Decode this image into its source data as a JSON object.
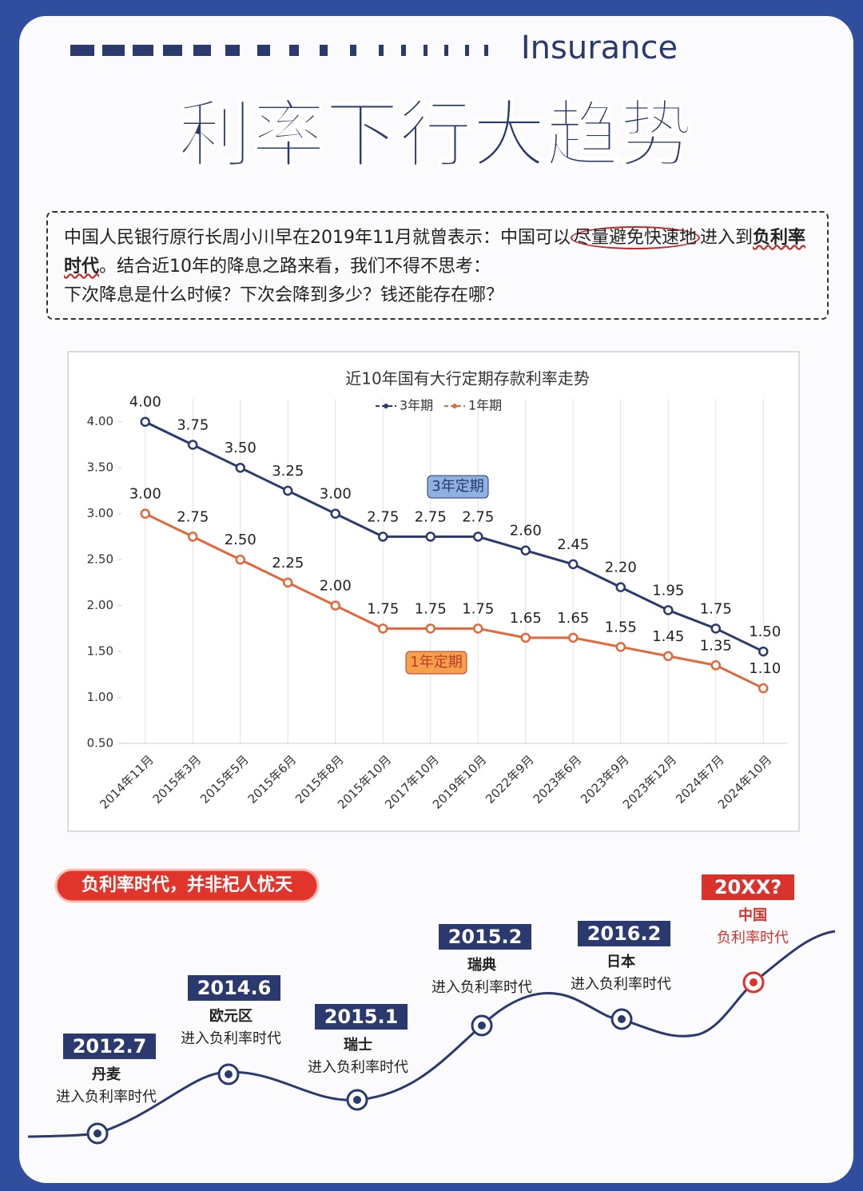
{
  "header": {
    "tag": "Insurance",
    "title": "利率下行大趋势"
  },
  "intro": {
    "segments": [
      "中国人民银行原行长周小川早在2019年11月就曾表示：中国可以",
      "尽量避免快速地",
      "进入到",
      "负利率时代",
      "。结合近10年的降息之路来看，我们不得不思考："
    ],
    "questions": "下次降息是什么时候？下次会降到多少？钱还能存在哪？"
  },
  "chart_data": {
    "type": "line",
    "title": "近10年国有大行定期存款利率走势",
    "categories": [
      "2014年11月",
      "2015年3月",
      "2015年5月",
      "2015年6月",
      "2015年8月",
      "2015年10月",
      "2017年10月",
      "2019年10月",
      "2022年9月",
      "2023年6月",
      "2023年9月",
      "2023年12月",
      "2024年7月",
      "2024年10月"
    ],
    "series": [
      {
        "name": "3年期",
        "color": "#2b3a6e",
        "values": [
          4.0,
          3.75,
          3.5,
          3.25,
          3.0,
          2.75,
          2.75,
          2.75,
          2.6,
          2.45,
          2.2,
          1.95,
          1.75,
          1.5
        ],
        "value_labels": [
          "4.00",
          "3.75",
          "3.50",
          "3.25",
          "3.00",
          "2.75",
          "2.75",
          "2.75",
          "2.60",
          "2.45",
          "2.20",
          "1.95",
          "1.75",
          "1.50"
        ]
      },
      {
        "name": "1年期",
        "color": "#e2673a",
        "values": [
          3.0,
          2.75,
          2.5,
          2.25,
          2.0,
          1.75,
          1.75,
          1.75,
          1.65,
          1.65,
          1.55,
          1.45,
          1.35,
          1.1
        ],
        "value_labels": [
          "3.00",
          "2.75",
          "2.50",
          "2.25",
          "2.00",
          "1.75",
          "1.75",
          "1.75",
          "1.65",
          "1.65",
          "1.55",
          "1.45",
          "1.35",
          "1.10"
        ]
      }
    ],
    "ylim": [
      0.5,
      4.25
    ],
    "yticks": [
      {
        "value": 0.5,
        "label": "0.50"
      },
      {
        "value": 1,
        "label": "1.00"
      },
      {
        "value": 1.5,
        "label": "1.50"
      },
      {
        "value": 2,
        "label": "2.00"
      },
      {
        "value": 2.5,
        "label": "2.50"
      },
      {
        "value": 3,
        "label": "3.00"
      },
      {
        "value": 3.5,
        "label": "3.50"
      },
      {
        "value": 4,
        "label": "4.00"
      }
    ],
    "annotations": [
      "3年定期",
      "1年定期"
    ]
  },
  "timeline": {
    "banner": "负利率时代，并非杞人忧天",
    "events": [
      {
        "date": "2012.7",
        "country": "丹麦",
        "text": "进入负利率时代"
      },
      {
        "date": "2014.6",
        "country": "欧元区",
        "text": "进入负利率时代"
      },
      {
        "date": "2015.1",
        "country": "瑞士",
        "text": "进入负利率时代"
      },
      {
        "date": "2015.2",
        "country": "瑞典",
        "text": "进入负利率时代"
      },
      {
        "date": "2016.2",
        "country": "日本",
        "text": "进入负利率时代"
      },
      {
        "date": "20XX?",
        "country": "中国",
        "text": "负利率时代"
      }
    ]
  }
}
